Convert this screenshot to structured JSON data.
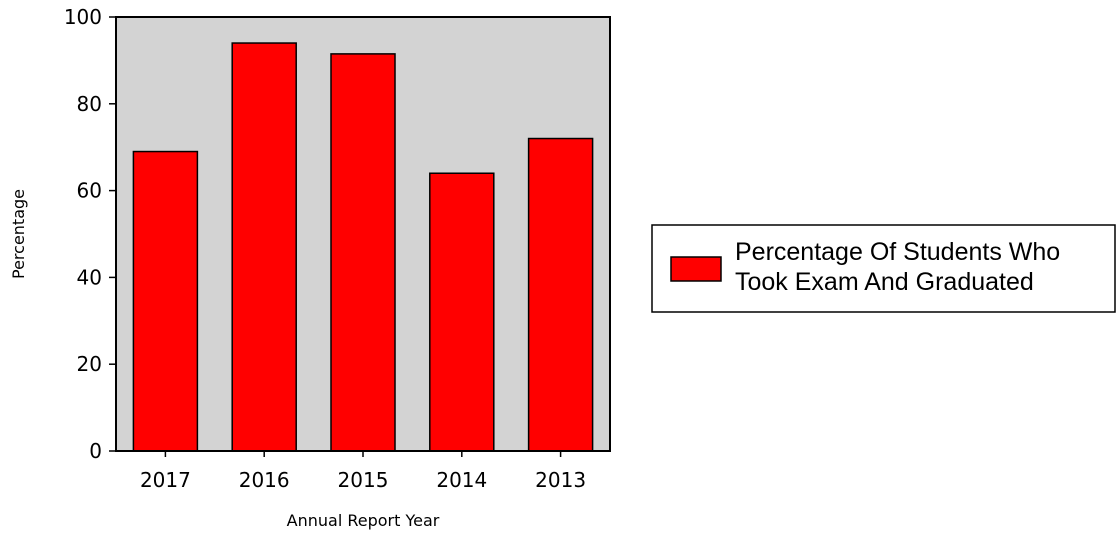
{
  "chart_data": {
    "type": "bar",
    "title": "",
    "xlabel": "Annual Report Year",
    "ylabel": "Percentage",
    "categories": [
      "2017",
      "2016",
      "2015",
      "2014",
      "2013"
    ],
    "series": [
      {
        "name": "Percentage Of Students Who Took Exam And Graduated",
        "legend_lines": [
          "Percentage Of Students Who",
          "Took Exam And Graduated"
        ],
        "values": [
          69,
          94,
          91.5,
          64,
          72
        ],
        "color": "#ff0000"
      }
    ],
    "ylim": [
      0,
      100
    ],
    "yticks": [
      0,
      20,
      40,
      60,
      80,
      100
    ],
    "grid": false,
    "plot_background": "#d3d3d3",
    "legend_position": "right"
  }
}
